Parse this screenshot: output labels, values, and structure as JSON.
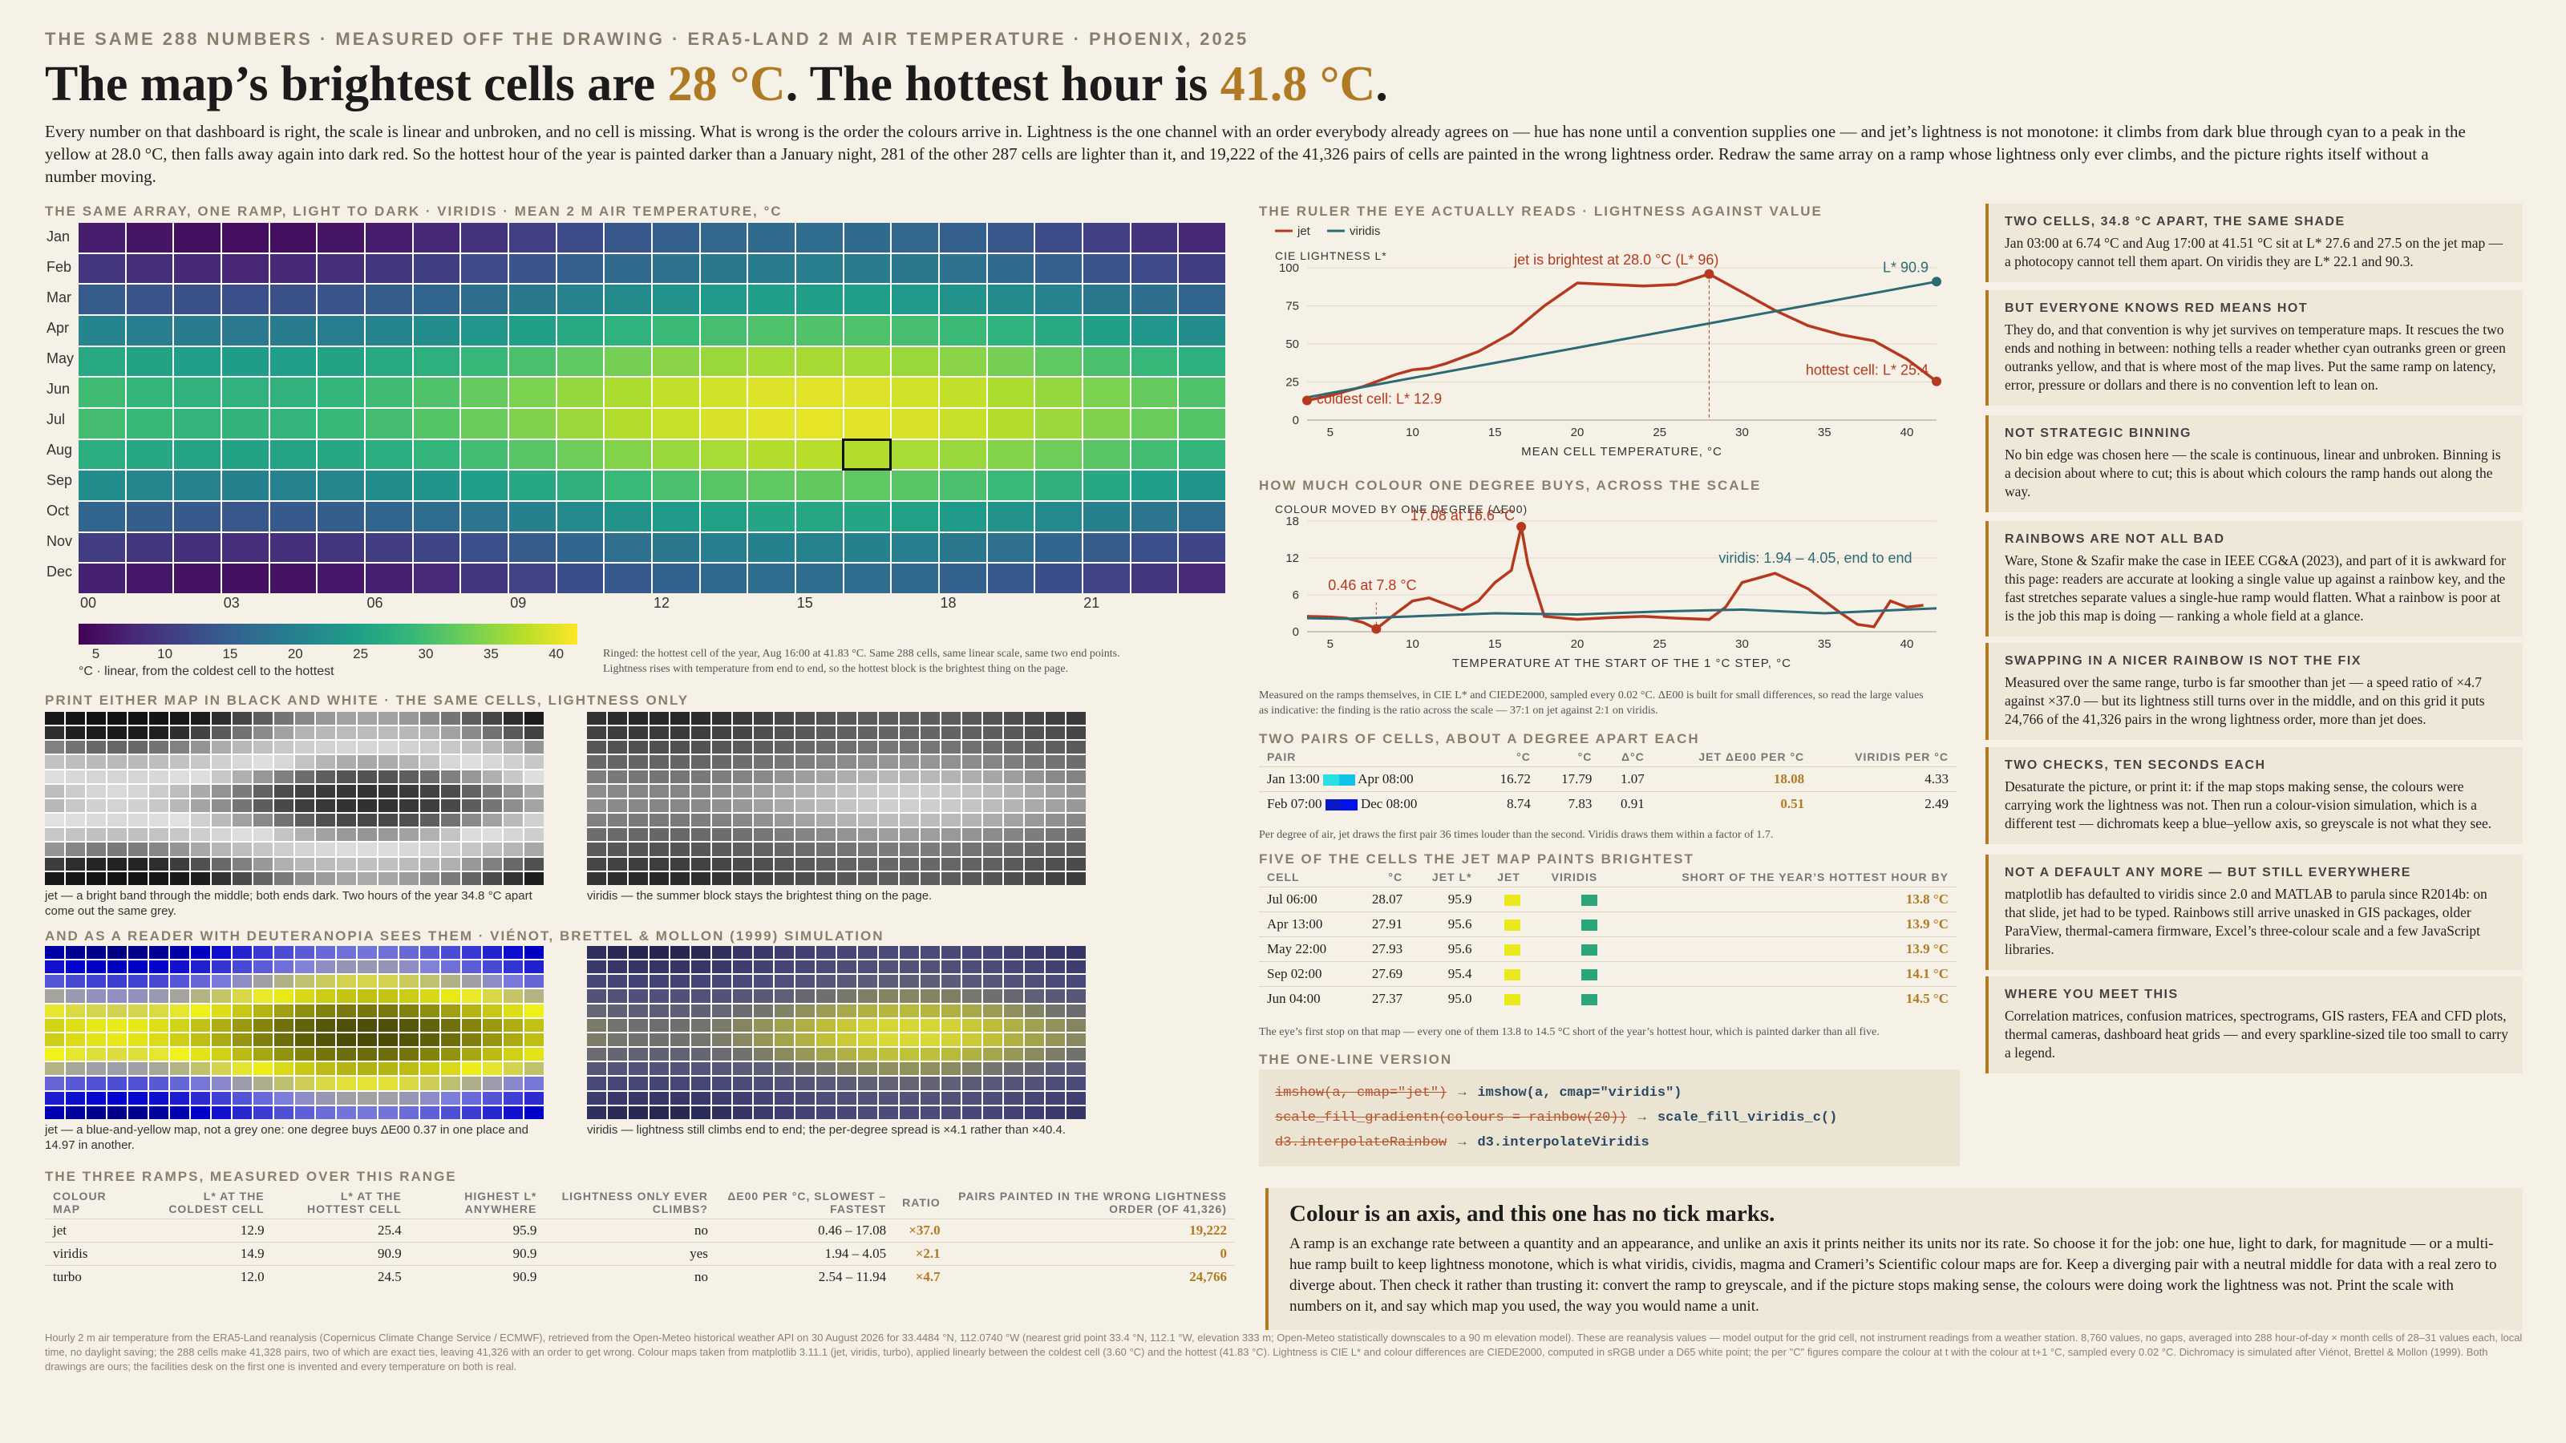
{
  "kicker": "THE SAME 288 NUMBERS  ·  MEASURED OFF THE DRAWING  ·  ERA5-LAND 2 M AIR TEMPERATURE  ·  PHOENIX, 2025",
  "headline": {
    "a": "The map’s brightest cells are ",
    "b": "28 °C",
    "c": ". The hottest hour is ",
    "d": "41.8 °C",
    "e": "."
  },
  "lede": "Every number on that dashboard is right, the scale is linear and unbroken, and no cell is missing. What is wrong is the order the colours arrive in. Lightness is the one channel with an order everybody already agrees on — hue has none until a convention supplies one — and jet’s lightness is not monotone: it climbs from dark blue through cyan to a peak in the yellow at 28.0 °C, then falls away again into dark red. So the hottest hour of the year is painted darker than a January night, 281 of the other 287 cells are lighter than it, and 19,222 of the 41,326 pairs of cells are painted in the wrong lightness order. Redraw the same array on a ramp whose lightness only ever climbs, and the picture rights itself without a number moving.",
  "heatmap": {
    "title": "THE SAME ARRAY, ONE RAMP, LIGHT TO DARK  ·  VIRIDIS  ·  MEAN 2 M AIR TEMPERATURE, °C",
    "months": [
      "Jan",
      "Feb",
      "Mar",
      "Apr",
      "May",
      "Jun",
      "Jul",
      "Aug",
      "Sep",
      "Oct",
      "Nov",
      "Dec"
    ],
    "hours": [
      "00",
      "03",
      "06",
      "09",
      "12",
      "15",
      "18",
      "21"
    ],
    "ticks": [
      "5",
      "10",
      "15",
      "20",
      "25",
      "30",
      "35",
      "40"
    ],
    "scale_caption": "°C · linear, from the coldest cell to the hottest",
    "ringed": "Ringed: the hottest cell of the year, Aug 16:00 at 41.83 °C. Same 288 cells, same linear scale, same two end points. Lightness rises with temperature from end to end, so the hottest block is the brightest thing on the page."
  },
  "bw": {
    "title": "PRINT EITHER MAP IN BLACK AND WHITE  ·  THE SAME CELLS, LIGHTNESS ONLY",
    "jet_cap": "jet — a bright band through the middle; both ends dark. Two hours of the year 34.8 °C apart come out the same grey.",
    "vir_cap": "viridis — the summer block stays the brightest thing on the page."
  },
  "deut": {
    "title": "AND AS A READER WITH DEUTERANOPIA SEES THEM  ·  VIÉNOT, BRETTEL & MOLLON (1999) SIMULATION",
    "jet_cap": "jet — a blue-and-yellow map, not a grey one: one degree buys ΔE00 0.37 in one place and 14.97 in another.",
    "vir_cap": "viridis — lightness still climbs end to end; the per-degree spread is ×4.1 rather than ×40.4."
  },
  "ramps": {
    "title": "THE THREE RAMPS, MEASURED OVER THIS RANGE",
    "headers": [
      "COLOUR MAP",
      "L* AT THE COLDEST CELL",
      "L* AT THE HOTTEST CELL",
      "HIGHEST L* ANYWHERE",
      "LIGHTNESS ONLY EVER CLIMBS?",
      "ΔE00 PER °C, SLOWEST – FASTEST",
      "RATIO",
      "PAIRS PAINTED IN THE WRONG LIGHTNESS ORDER (OF 41,326)"
    ],
    "rows": [
      [
        "jet",
        "12.9",
        "25.4",
        "95.9",
        "no",
        "0.46 – 17.08",
        "×37.0",
        "19,222"
      ],
      [
        "viridis",
        "14.9",
        "90.9",
        "90.9",
        "yes",
        "1.94 – 4.05",
        "×2.1",
        "0"
      ],
      [
        "turbo",
        "12.0",
        "24.5",
        "90.9",
        "no",
        "2.54 – 11.94",
        "×4.7",
        "24,766"
      ]
    ]
  },
  "chart1": {
    "title": "THE RULER THE EYE ACTUALLY READS  ·  LIGHTNESS AGAINST VALUE",
    "legend": [
      "jet",
      "viridis"
    ],
    "ylabel": "CIE LIGHTNESS L*",
    "xlabel": "MEAN CELL TEMPERATURE, °C",
    "yticks": [
      "0",
      "25",
      "50",
      "75",
      "100"
    ],
    "xticks": [
      "5",
      "10",
      "15",
      "20",
      "25",
      "30",
      "35",
      "40"
    ],
    "ann_peak": "jet is brightest at 28.0 °C (L* 96)",
    "ann_cold": "coldest cell: L* 12.9",
    "ann_hot": "hottest cell: L* 25.4",
    "ann_vir": "L* 90.9"
  },
  "chart2": {
    "title": "HOW MUCH COLOUR ONE DEGREE BUYS, ACROSS THE SCALE",
    "ylabel": "COLOUR MOVED BY ONE DEGREE (ΔE00)",
    "xlabel": "TEMPERATURE AT THE START OF THE 1 °C STEP, °C",
    "yticks": [
      "0",
      "6",
      "12",
      "18"
    ],
    "xticks": [
      "5",
      "10",
      "15",
      "20",
      "25",
      "30",
      "35",
      "40"
    ],
    "ann_max": "17.08 at 16.6 °C",
    "ann_min": "0.46 at 7.8 °C",
    "ann_vir": "viridis: 1.94 – 4.05, end to end",
    "note": "Measured on the ramps themselves, in CIE L* and CIEDE2000, sampled every 0.02 °C. ΔE00 is built for small differences, so read the large values as indicative: the finding is the ratio across the scale — 37:1 on jet against 2:1 on viridis."
  },
  "chart_data": [
    {
      "type": "line",
      "title": "",
      "xlabel": "MEAN CELL TEMPERATURE, °C",
      "ylabel": "CIE LIGHTNESS L*",
      "xlim": [
        3.6,
        41.8
      ],
      "ylim": [
        0,
        100
      ],
      "series": [
        {
          "name": "jet",
          "x": [
            3.6,
            5,
            7,
            9,
            10,
            11,
            12,
            14,
            16,
            18,
            20,
            22,
            24,
            26,
            28,
            30,
            32,
            34,
            36,
            38,
            40,
            41.8
          ],
          "values": [
            12.9,
            16,
            22,
            30,
            33,
            34,
            37,
            45,
            57,
            75,
            90,
            89,
            88,
            89,
            95.9,
            84,
            72,
            62,
            56,
            52,
            40,
            25.4
          ]
        },
        {
          "name": "viridis",
          "x": [
            3.6,
            41.8
          ],
          "values": [
            14.9,
            90.9
          ]
        }
      ]
    },
    {
      "type": "line",
      "title": "",
      "xlabel": "TEMPERATURE AT THE START OF THE 1 °C STEP, °C",
      "ylabel": "COLOUR MOVED BY ONE DEGREE (ΔE00)",
      "xlim": [
        3.6,
        41.8
      ],
      "ylim": [
        0,
        18
      ],
      "series": [
        {
          "name": "jet",
          "x": [
            3.6,
            5,
            6,
            7,
            7.8,
            9,
            10,
            11,
            12,
            13,
            14,
            15,
            16,
            16.6,
            17,
            18,
            20,
            22,
            24,
            26,
            28,
            29,
            30,
            32,
            34,
            35,
            36,
            37,
            38,
            39,
            40,
            41
          ],
          "values": [
            2.5,
            2.4,
            2.2,
            1.5,
            0.46,
            3,
            5,
            5.5,
            4.5,
            3.5,
            5,
            8,
            10,
            17.08,
            11,
            2.5,
            2,
            2.3,
            2.5,
            2.2,
            2,
            4,
            8,
            9.5,
            7,
            5,
            3,
            1.2,
            0.8,
            5,
            4,
            4.3
          ]
        },
        {
          "name": "viridis",
          "x": [
            3.6,
            6,
            10,
            15,
            20,
            25,
            30,
            35,
            40,
            41.8
          ],
          "values": [
            2.2,
            2.1,
            2.5,
            3,
            2.8,
            3.3,
            3.6,
            3,
            3.6,
            3.8
          ]
        }
      ]
    }
  ],
  "pairs": {
    "title": "TWO PAIRS OF CELLS, ABOUT A DEGREE APART EACH",
    "headers": [
      "PAIR",
      "°C",
      "°C",
      "Δ°C",
      "JET ΔE00 PER °C",
      "VIRIDIS PER °C"
    ],
    "rows": [
      [
        "Jan 13:00",
        "Apr 08:00",
        "16.72",
        "17.79",
        "1.07",
        "18.08",
        "4.33"
      ],
      [
        "Feb 07:00",
        "Dec 08:00",
        "8.74",
        "7.83",
        "0.91",
        "0.51",
        "2.49"
      ]
    ],
    "note": "Per degree of air, jet draws the first pair 36 times louder than the second. Viridis draws them within a factor of 1.7."
  },
  "bright": {
    "title": "FIVE OF THE CELLS THE JET MAP PAINTS BRIGHTEST",
    "headers": [
      "CELL",
      "°C",
      "JET L*",
      "JET",
      "VIRIDIS",
      "SHORT OF THE YEAR’S HOTTEST HOUR BY"
    ],
    "rows": [
      [
        "Jul 06:00",
        "28.07",
        "95.9",
        "13.8 °C"
      ],
      [
        "Apr 13:00",
        "27.91",
        "95.6",
        "13.9 °C"
      ],
      [
        "May 22:00",
        "27.93",
        "95.6",
        "13.9 °C"
      ],
      [
        "Sep 02:00",
        "27.69",
        "95.4",
        "14.1 °C"
      ],
      [
        "Jun 04:00",
        "27.37",
        "95.0",
        "14.5 °C"
      ]
    ],
    "note": "The eye’s first stop on that map — every one of them 13.8 to 14.5 °C short of the year’s hottest hour, which is painted darker than all five."
  },
  "oneline": {
    "title": "THE ONE-LINE VERSION",
    "lines": [
      [
        "imshow(a, cmap=\"jet\")",
        "imshow(a, cmap=\"viridis\")"
      ],
      [
        "scale_fill_gradientn(colours = rainbow(20))",
        "scale_fill_viridis_c()"
      ],
      [
        "d3.interpolateRainbow",
        "d3.interpolateViridis"
      ]
    ]
  },
  "conclusion": {
    "title": "Colour is an axis, and this one has no tick marks.",
    "body": "A ramp is an exchange rate between a quantity and an appearance, and unlike an axis it prints neither its units nor its rate. So choose it for the job: one hue, light to dark, for magnitude — or a multi-hue ramp built to keep lightness monotone, which is what viridis, cividis, magma and Crameri’s Scientific colour maps are for. Keep a diverging pair with a neutral middle for data with a real zero to diverge about. Then check it rather than trusting it: convert the ramp to greyscale, and if the picture stops making sense, the colours were doing work the lightness was not. Print the scale with numbers on it, and say which map you used, the way you would name a unit."
  },
  "cards": [
    {
      "title": "TWO CELLS, 34.8 °C APART, THE SAME SHADE",
      "body": "Jan 03:00 at 6.74 °C and Aug 17:00 at 41.51 °C sit at L* 27.6 and 27.5 on the jet map — a photocopy cannot tell them apart. On viridis they are L* 22.1 and 90.3."
    },
    {
      "title": "BUT EVERYONE KNOWS RED MEANS HOT",
      "body": "They do, and that convention is why jet survives on temperature maps. It rescues the two ends and nothing in between: nothing tells a reader whether cyan outranks green or green outranks yellow, and that is where most of the map lives. Put the same ramp on latency, error, pressure or dollars and there is no convention left to lean on."
    },
    {
      "title": "NOT STRATEGIC BINNING",
      "body": "No bin edge was chosen here — the scale is continuous, linear and unbroken. Binning is a decision about where to cut; this is about which colours the ramp hands out along the way."
    },
    {
      "title": "RAINBOWS ARE NOT ALL BAD",
      "body": "Ware, Stone & Szafir make the case in IEEE CG&A (2023), and part of it is awkward for this page: readers are accurate at looking a single value up against a rainbow key, and the fast stretches separate values a single-hue ramp would flatten. What a rainbow is poor at is the job this map is doing — ranking a whole field at a glance."
    },
    {
      "title": "SWAPPING IN A NICER RAINBOW IS NOT THE FIX",
      "body": "Measured over the same range, turbo is far smoother than jet — a speed ratio of ×4.7 against ×37.0 — but its lightness still turns over in the middle, and on this grid it puts 24,766 of the 41,326 pairs in the wrong lightness order, more than jet does."
    },
    {
      "title": "TWO CHECKS, TEN SECONDS EACH",
      "body": "Desaturate the picture, or print it: if the map stops making sense, the colours were carrying work the lightness was not. Then run a colour-vision simulation, which is a different test — dichromats keep a blue–yellow axis, so greyscale is not what they see."
    },
    {
      "title": "NOT A DEFAULT ANY MORE — BUT STILL EVERYWHERE",
      "body": "matplotlib has defaulted to viridis since 2.0 and MATLAB to parula since R2014b: on that slide, jet had to be typed. Rainbows still arrive unasked in GIS packages, older ParaView, thermal-camera firmware, Excel’s three-colour scale and a few JavaScript libraries."
    },
    {
      "title": "WHERE YOU MEET THIS",
      "body": "Correlation matrices, confusion matrices, spectrograms, GIS rasters, FEA and CFD plots, thermal cameras, dashboard heat grids — and every sparkline-sized tile too small to carry a legend."
    }
  ],
  "footer": "Hourly 2 m air temperature from the ERA5-Land reanalysis (Copernicus Climate Change Service / ECMWF), retrieved from the Open-Meteo historical weather API on 30 August 2026 for 33.4484 °N, 112.0740 °W (nearest grid point 33.4 °N, 112.1 °W, elevation 333 m; Open-Meteo statistically downscales to a 90 m elevation model). These are reanalysis values — model output for the grid cell, not instrument readings from a weather station. 8,760 values, no gaps, averaged into 288 hour-of-day × month cells of 28–31 values each, local time, no daylight saving; the 288 cells make 41,328 pairs, two of which are exact ties, leaving 41,326 with an order to get wrong. Colour maps taken from matplotlib 3.11.1 (jet, viridis, turbo), applied linearly between the coldest cell (3.60 °C) and the hottest (41.83 °C). Lightness is CIE L* and colour differences are CIEDE2000, computed in sRGB under a D65 white point; the per \"C\" figures compare the colour at t with the colour at t+1 °C, sampled every 0.02 °C. Dichromacy is simulated after Viénot, Brettel & Mollon (1999). Both drawings are ours; the facilities desk on the first one is invented and every temperature on both is real.",
  "colors": {
    "accent": "#b07a24",
    "jet_line": "#b5391f",
    "viridis_line": "#2d6a75"
  }
}
